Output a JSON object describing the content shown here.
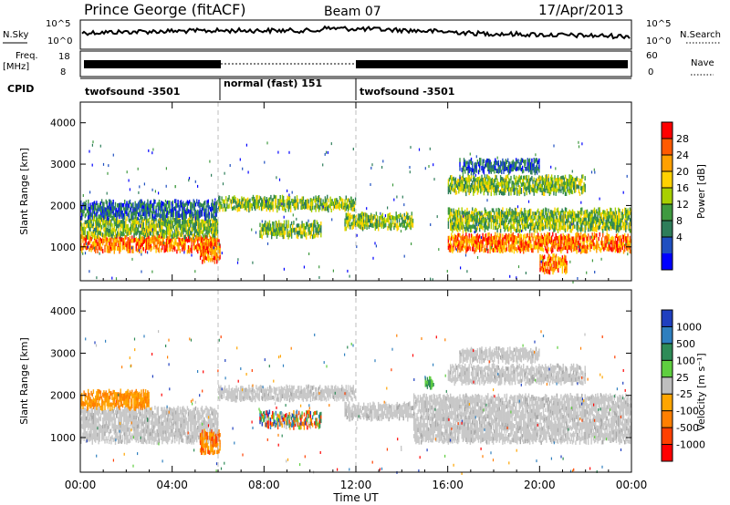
{
  "header": {
    "title": "Prince George (fitACF)",
    "beam": "Beam 07",
    "date": "17/Apr/2013"
  },
  "top_panels": {
    "nsky_label": "N.Sky",
    "nsky_ticks": [
      "10^5",
      "10^0"
    ],
    "nsearch_label": "N.Search",
    "nsearch_ticks": [
      "10^5",
      "10^0"
    ],
    "freq_label": "Freq.",
    "freq_unit": "[MHz]",
    "freq_ticks": [
      "18",
      "8"
    ],
    "nave_label": "Nave",
    "nave_ticks": [
      "60",
      "0"
    ],
    "cpid_label": "CPID"
  },
  "chart_data": [
    {
      "type": "heatmap",
      "name": "power",
      "xlabel": "",
      "ylabel": "Slant Range [km]",
      "xlim": [
        0,
        24
      ],
      "ylim": [
        180,
        4500
      ],
      "yticks": [
        1000,
        2000,
        3000,
        4000
      ],
      "colorbar": {
        "label": "Power [dB]",
        "ticks": [
          "28",
          "24",
          "20",
          "16",
          "12",
          "8",
          "4"
        ],
        "colors": [
          "#ff0000",
          "#ff5a00",
          "#ffa000",
          "#ffd200",
          "#a8d000",
          "#3f9a3f",
          "#2e7d5a",
          "#1f4fc0",
          "#0000ff"
        ]
      },
      "echo_bands": [
        {
          "x": [
            0,
            6
          ],
          "y": [
            900,
            1250
          ],
          "level": "high"
        },
        {
          "x": [
            0,
            6
          ],
          "y": [
            1250,
            1700
          ],
          "level": "mid"
        },
        {
          "x": [
            0,
            6
          ],
          "y": [
            1700,
            2100
          ],
          "level": "low"
        },
        {
          "x": [
            5.2,
            6.1
          ],
          "y": [
            650,
            1150
          ],
          "level": "high"
        },
        {
          "x": [
            6,
            12
          ],
          "y": [
            1900,
            2200
          ],
          "level": "mid"
        },
        {
          "x": [
            7.8,
            10.5
          ],
          "y": [
            1250,
            1600
          ],
          "level": "mid"
        },
        {
          "x": [
            11.5,
            14.5
          ],
          "y": [
            1450,
            1800
          ],
          "level": "mid"
        },
        {
          "x": [
            16,
            24
          ],
          "y": [
            900,
            1300
          ],
          "level": "high"
        },
        {
          "x": [
            16,
            24
          ],
          "y": [
            1400,
            1900
          ],
          "level": "mid"
        },
        {
          "x": [
            16,
            22
          ],
          "y": [
            2300,
            2700
          ],
          "level": "mid"
        },
        {
          "x": [
            16.5,
            20
          ],
          "y": [
            2800,
            3100
          ],
          "level": "low"
        },
        {
          "x": [
            20,
            21.2
          ],
          "y": [
            400,
            800
          ],
          "level": "high"
        }
      ]
    },
    {
      "type": "heatmap",
      "name": "velocity",
      "xlabel": "Time UT",
      "ylabel": "Slant Range [km]",
      "xticks": [
        "00:00",
        "04:00",
        "08:00",
        "12:00",
        "16:00",
        "20:00",
        "00:00"
      ],
      "xlim": [
        0,
        24
      ],
      "ylim": [
        180,
        4500
      ],
      "yticks": [
        1000,
        2000,
        3000,
        4000
      ],
      "colorbar": {
        "label": "Velocity [m s⁻¹]",
        "ticks": [
          "1000",
          "500",
          "100",
          "25",
          "-25",
          "-100",
          "-500",
          "-1000"
        ],
        "colors": [
          "#1f3fbf",
          "#2e7fbf",
          "#2e8b57",
          "#5fcf3f",
          "#bfbfbf",
          "#ffa500",
          "#ff7f00",
          "#ff4000",
          "#ff0000"
        ]
      },
      "echo_bands": [
        {
          "x": [
            0,
            6
          ],
          "y": [
            900,
            1700
          ],
          "level": "ground"
        },
        {
          "x": [
            0,
            3
          ],
          "y": [
            1700,
            2100
          ],
          "level": "negative"
        },
        {
          "x": [
            5.2,
            6.1
          ],
          "y": [
            650,
            1150
          ],
          "level": "strong_negative"
        },
        {
          "x": [
            6,
            12
          ],
          "y": [
            1900,
            2200
          ],
          "level": "ground"
        },
        {
          "x": [
            7.8,
            10.5
          ],
          "y": [
            1250,
            1600
          ],
          "level": "mixed"
        },
        {
          "x": [
            11.5,
            14.5
          ],
          "y": [
            1450,
            1800
          ],
          "level": "ground"
        },
        {
          "x": [
            15,
            15.4
          ],
          "y": [
            2200,
            2400
          ],
          "level": "positive"
        },
        {
          "x": [
            14.5,
            24
          ],
          "y": [
            900,
            2000
          ],
          "level": "ground"
        },
        {
          "x": [
            16,
            22
          ],
          "y": [
            2300,
            2700
          ],
          "level": "ground"
        },
        {
          "x": [
            16.5,
            20
          ],
          "y": [
            2800,
            3100
          ],
          "level": "ground"
        }
      ]
    }
  ],
  "cpid_segments": [
    {
      "label": "twofsound -3501",
      "start": 0,
      "end": 6
    },
    {
      "label": "normal (fast) 151",
      "start": 6,
      "end": 12
    },
    {
      "label": "twofsound -3501",
      "start": 12,
      "end": 24
    }
  ]
}
